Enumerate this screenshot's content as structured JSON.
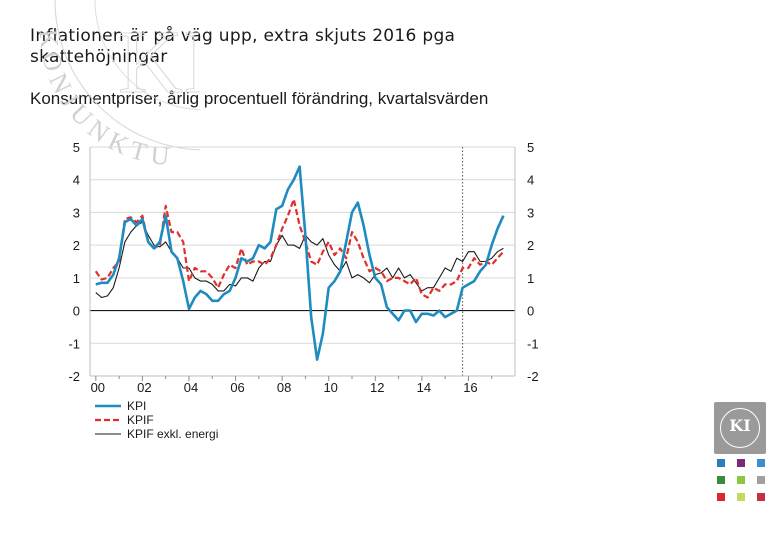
{
  "title": "Inflationen är på väg upp, extra skjuts 2016 pga skattehöjningar",
  "subtitle": "Konsumentpriser, årlig procentuell förändring, kvartalsvärden",
  "watermark_text": "KONJUNKTURINSTITUTET",
  "logo_text": "KI",
  "colors": {
    "kpi": "#1f8bbf",
    "kpif": "#e0302b",
    "kpif_excl": "#1a1a1a",
    "logo": "#9a9a9a",
    "swatches": [
      "#2d7ec1",
      "#7b2a73",
      "#3b8fcf",
      "#3f8a3a",
      "#8dc63f",
      "#a0a0a0",
      "#d7282f",
      "#c8d85a",
      "#c62f3e"
    ]
  },
  "chart_data": {
    "type": "line",
    "title": "Konsumentpriser, årlig procentuell förändring, kvartalsvärden",
    "xlabel": "",
    "ylabel": "",
    "ylim": [
      -2,
      5
    ],
    "xlim": [
      1999.75,
      2018.0
    ],
    "y_ticks": [
      5,
      4,
      3,
      2,
      1,
      0,
      -1,
      -2
    ],
    "y_tick_labels": [
      "5",
      "4",
      "3",
      "2",
      "1",
      "0",
      "-1",
      "-2"
    ],
    "x_ticks": [
      2000,
      2002,
      2004,
      2006,
      2008,
      2010,
      2012,
      2014,
      2016
    ],
    "x_tick_labels": [
      "00",
      "02",
      "04",
      "06",
      "08",
      "10",
      "12",
      "14",
      "16"
    ],
    "forecast_divider": 2015.75,
    "zero_line": true,
    "legend_position": "bottom-left",
    "series": [
      {
        "name": "KPI",
        "style": "solid-thick",
        "x": [
          2000.0,
          2000.25,
          2000.5,
          2000.75,
          2001.0,
          2001.25,
          2001.5,
          2001.75,
          2002.0,
          2002.25,
          2002.5,
          2002.75,
          2003.0,
          2003.25,
          2003.5,
          2003.75,
          2004.0,
          2004.25,
          2004.5,
          2004.75,
          2005.0,
          2005.25,
          2005.5,
          2005.75,
          2006.0,
          2006.25,
          2006.5,
          2006.75,
          2007.0,
          2007.25,
          2007.5,
          2007.75,
          2008.0,
          2008.25,
          2008.5,
          2008.75,
          2009.0,
          2009.25,
          2009.5,
          2009.75,
          2010.0,
          2010.25,
          2010.5,
          2010.75,
          2011.0,
          2011.25,
          2011.5,
          2011.75,
          2012.0,
          2012.25,
          2012.5,
          2012.75,
          2013.0,
          2013.25,
          2013.5,
          2013.75,
          2014.0,
          2014.25,
          2014.5,
          2014.75,
          2015.0,
          2015.25,
          2015.5,
          2015.75,
          2016.0,
          2016.25,
          2016.5,
          2016.75,
          2017.0,
          2017.25,
          2017.5
        ],
        "values": [
          0.8,
          0.85,
          0.85,
          1.1,
          1.6,
          2.7,
          2.8,
          2.6,
          2.8,
          2.1,
          1.9,
          2.1,
          2.9,
          1.8,
          1.6,
          0.9,
          0.05,
          0.4,
          0.6,
          0.5,
          0.3,
          0.3,
          0.5,
          0.6,
          1.0,
          1.6,
          1.5,
          1.6,
          2.0,
          1.9,
          2.1,
          3.1,
          3.2,
          3.7,
          4.0,
          4.4,
          2.3,
          -0.2,
          -1.5,
          -0.7,
          0.7,
          0.9,
          1.2,
          2.1,
          3.0,
          3.3,
          2.6,
          1.7,
          1.0,
          0.8,
          0.1,
          -0.1,
          -0.3,
          0.0,
          0.0,
          -0.35,
          -0.1,
          -0.1,
          -0.15,
          0.0,
          -0.2,
          -0.1,
          0.0,
          0.7,
          0.8,
          0.9,
          1.2,
          1.4,
          2.0,
          2.5,
          2.9
        ]
      },
      {
        "name": "KPIF",
        "style": "dashed",
        "x": [
          2000.0,
          2000.25,
          2000.5,
          2000.75,
          2001.0,
          2001.25,
          2001.5,
          2001.75,
          2002.0,
          2002.25,
          2002.5,
          2002.75,
          2003.0,
          2003.25,
          2003.5,
          2003.75,
          2004.0,
          2004.25,
          2004.5,
          2004.75,
          2005.0,
          2005.25,
          2005.5,
          2005.75,
          2006.0,
          2006.25,
          2006.5,
          2006.75,
          2007.0,
          2007.25,
          2007.5,
          2007.75,
          2008.0,
          2008.25,
          2008.5,
          2008.75,
          2009.0,
          2009.25,
          2009.5,
          2009.75,
          2010.0,
          2010.25,
          2010.5,
          2010.75,
          2011.0,
          2011.25,
          2011.5,
          2011.75,
          2012.0,
          2012.25,
          2012.5,
          2012.75,
          2013.0,
          2013.25,
          2013.5,
          2013.75,
          2014.0,
          2014.25,
          2014.5,
          2014.75,
          2015.0,
          2015.25,
          2015.5,
          2015.75,
          2016.0,
          2016.25,
          2016.5,
          2016.75,
          2017.0,
          2017.25,
          2017.5
        ],
        "values": [
          1.2,
          0.95,
          1.0,
          1.3,
          1.5,
          2.8,
          2.85,
          2.7,
          2.9,
          2.1,
          1.9,
          2.0,
          3.2,
          2.4,
          2.4,
          2.1,
          0.9,
          1.3,
          1.2,
          1.2,
          1.0,
          0.7,
          1.1,
          1.4,
          1.3,
          1.9,
          1.4,
          1.5,
          1.5,
          1.4,
          1.6,
          2.0,
          2.5,
          2.9,
          3.4,
          2.6,
          2.1,
          1.5,
          1.4,
          1.8,
          2.1,
          1.7,
          1.9,
          1.6,
          2.4,
          2.1,
          1.6,
          1.2,
          1.3,
          1.2,
          0.9,
          1.0,
          1.0,
          0.9,
          0.8,
          1.0,
          0.5,
          0.4,
          0.7,
          0.6,
          0.8,
          0.8,
          0.9,
          1.3,
          1.3,
          1.6,
          1.4,
          1.5,
          1.4,
          1.6,
          1.8
        ]
      },
      {
        "name": "KPIF exkl. energi",
        "style": "solid-thin",
        "x": [
          2000.0,
          2000.25,
          2000.5,
          2000.75,
          2001.0,
          2001.25,
          2001.5,
          2001.75,
          2002.0,
          2002.25,
          2002.5,
          2002.75,
          2003.0,
          2003.25,
          2003.5,
          2003.75,
          2004.0,
          2004.25,
          2004.5,
          2004.75,
          2005.0,
          2005.25,
          2005.5,
          2005.75,
          2006.0,
          2006.25,
          2006.5,
          2006.75,
          2007.0,
          2007.25,
          2007.5,
          2007.75,
          2008.0,
          2008.25,
          2008.5,
          2008.75,
          2009.0,
          2009.25,
          2009.5,
          2009.75,
          2010.0,
          2010.25,
          2010.5,
          2010.75,
          2011.0,
          2011.25,
          2011.5,
          2011.75,
          2012.0,
          2012.25,
          2012.5,
          2012.75,
          2013.0,
          2013.25,
          2013.5,
          2013.75,
          2014.0,
          2014.25,
          2014.5,
          2014.75,
          2015.0,
          2015.25,
          2015.5,
          2015.75,
          2016.0,
          2016.25,
          2016.5,
          2016.75,
          2017.0,
          2017.25,
          2017.5
        ],
        "values": [
          0.55,
          0.4,
          0.45,
          0.7,
          1.3,
          2.1,
          2.4,
          2.6,
          2.7,
          2.3,
          2.0,
          1.95,
          2.1,
          1.8,
          1.6,
          1.3,
          1.3,
          1.0,
          0.9,
          0.9,
          0.8,
          0.6,
          0.6,
          0.8,
          0.75,
          1.0,
          1.0,
          0.9,
          1.3,
          1.5,
          1.5,
          2.0,
          2.3,
          2.0,
          2.0,
          1.9,
          2.3,
          2.1,
          2.0,
          2.2,
          1.7,
          1.4,
          1.2,
          1.5,
          1.0,
          1.1,
          1.0,
          0.85,
          1.1,
          1.15,
          1.3,
          1.0,
          1.3,
          1.0,
          1.1,
          0.85,
          0.6,
          0.7,
          0.7,
          1.0,
          1.3,
          1.2,
          1.6,
          1.5,
          1.8,
          1.8,
          1.5,
          1.5,
          1.6,
          1.8,
          1.9
        ]
      }
    ]
  }
}
